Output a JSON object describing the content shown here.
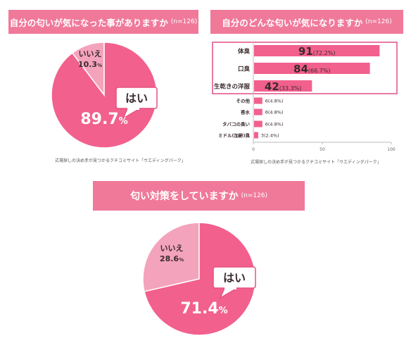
{
  "charts": [
    {
      "title": "自分の匂いが気になった事がありますか",
      "n_label": "(n=126)",
      "source": "式場探しの決め手が見つかるクチコミサイト「ウエディングパーク」",
      "chart_data": {
        "type": "pie",
        "title": "自分の匂いが気になった事がありますか",
        "n": 126,
        "slices": [
          {
            "label": "はい",
            "value": 89.7,
            "value_label": "89.7%",
            "color": "#f2608d"
          },
          {
            "label": "いいえ",
            "value": 10.3,
            "value_label": "10.3%",
            "color": "#f4a3bd"
          }
        ]
      }
    },
    {
      "title": "自分のどんな匂いが気になりますか",
      "n_label": "(n=126)",
      "source": "式場探しの決め手が見つかるクチコミサイト「ウエディングパーク」",
      "chart_data": {
        "type": "bar",
        "orientation": "horizontal",
        "title": "自分のどんな匂いが気になりますか",
        "n": 126,
        "categories": [
          "体臭",
          "口臭",
          "生乾きの洋服",
          "その他",
          "香水",
          "タバコの臭い",
          "ミドル(加齢)臭"
        ],
        "values": [
          91,
          84,
          42,
          6,
          6,
          6,
          3
        ],
        "percents": [
          "(72.2%)",
          "(66.7%)",
          "(33.3%)",
          "(4.8%)",
          "(4.8%)",
          "(4.8%)",
          "(2.4%)"
        ],
        "highlighted_top": 3,
        "xlim": [
          0,
          100
        ],
        "xticks": [
          "0",
          "50",
          "100"
        ],
        "bar_color": "#f2608d",
        "highlight_border_color": "#e04f86"
      }
    },
    {
      "title": "匂い対策をしていますか",
      "n_label": "(n=126)",
      "chart_data": {
        "type": "pie",
        "title": "匂い対策をしていますか",
        "n": 126,
        "slices": [
          {
            "label": "はい",
            "value": 71.4,
            "value_label": "71.4%",
            "color": "#f2608d"
          },
          {
            "label": "いいえ",
            "value": 28.6,
            "value_label": "28.6%",
            "color": "#f4a3bd"
          }
        ]
      }
    }
  ]
}
